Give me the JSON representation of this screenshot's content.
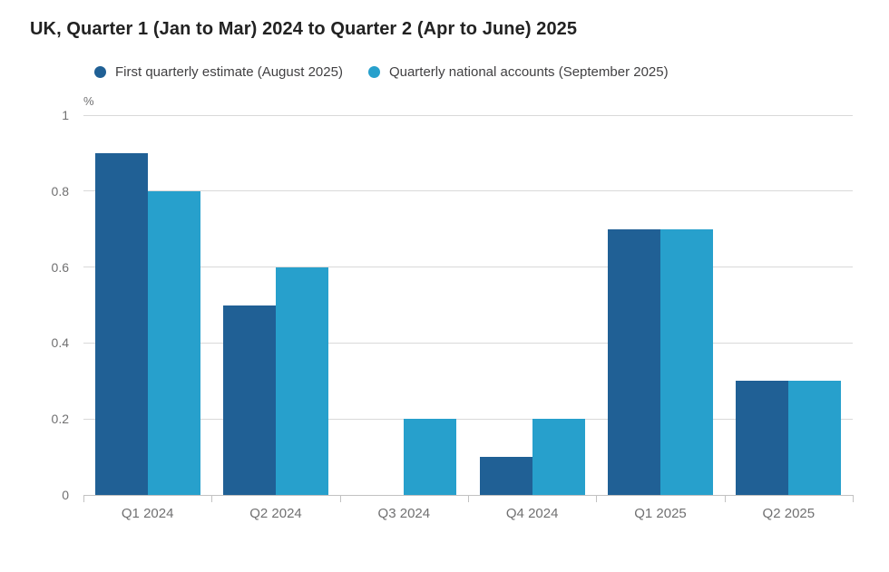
{
  "chart_data": {
    "type": "bar",
    "title": "UK, Quarter 1 (Jan to Mar) 2024 to Quarter 2 (Apr to June) 2025",
    "unit_label": "%",
    "xlabel": "",
    "ylabel": "%",
    "categories": [
      "Q1 2024",
      "Q2 2024",
      "Q3 2024",
      "Q4 2024",
      "Q1 2025",
      "Q2 2025"
    ],
    "series": [
      {
        "id": "first-quarterly-estimate",
        "name": "First quarterly estimate (August 2025)",
        "color": "#206095",
        "values": [
          0.9,
          0.5,
          0,
          0.1,
          0.7,
          0.3
        ]
      },
      {
        "id": "quarterly-national-accounts",
        "name": "Quarterly national accounts (September 2025)",
        "color": "#27A0CC",
        "values": [
          0.8,
          0.6,
          0.2,
          0.2,
          0.7,
          0.3
        ]
      }
    ],
    "ylim": [
      0,
      1
    ],
    "yticks": [
      0,
      0.2,
      0.4,
      0.6,
      0.8,
      1
    ],
    "ytick_labels": [
      "0",
      "0.2",
      "0.4",
      "0.6",
      "0.8",
      "1"
    ],
    "grid": true,
    "legend_position": "top"
  },
  "styles": {
    "grid_color": "#d9d9d9",
    "axis_color": "#c2c2c2",
    "axis_text_color": "#707071",
    "title_color": "#222222",
    "legend_text_color": "#414042",
    "background_color": "#ffffff"
  }
}
